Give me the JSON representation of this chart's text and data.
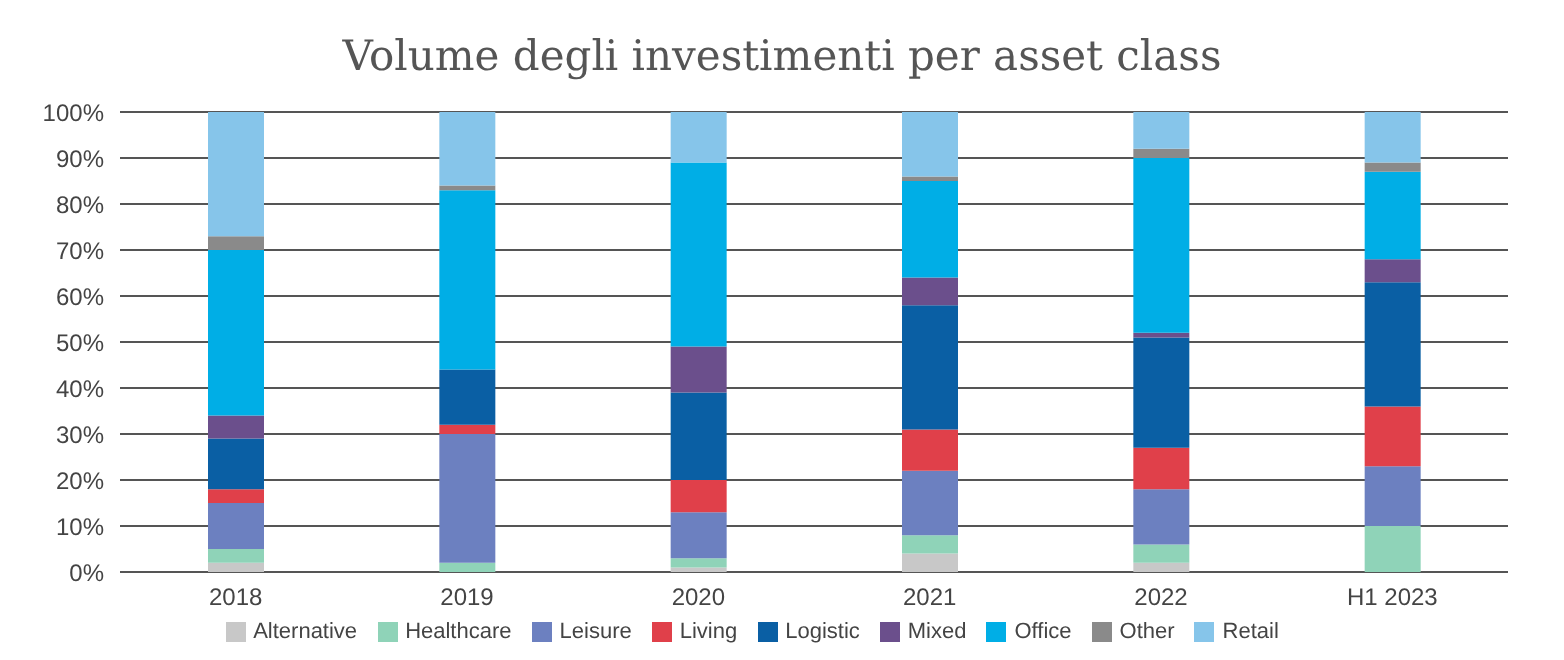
{
  "chart_data": {
    "type": "bar",
    "title": "Volume degli investimenti per asset class",
    "stacked": true,
    "categories": [
      "2018",
      "2019",
      "2020",
      "2021",
      "2022",
      "H1 2023"
    ],
    "series": [
      {
        "name": "Alternative",
        "color": "#c8c8c8",
        "values": [
          2,
          0,
          1,
          4,
          2,
          0
        ]
      },
      {
        "name": "Healthcare",
        "color": "#8fd3b8",
        "values": [
          3,
          2,
          2,
          4,
          4,
          10
        ]
      },
      {
        "name": "Leisure",
        "color": "#6c80c0",
        "values": [
          10,
          28,
          10,
          14,
          12,
          13
        ]
      },
      {
        "name": "Living",
        "color": "#e0404a",
        "values": [
          3,
          2,
          7,
          9,
          9,
          13
        ]
      },
      {
        "name": "Logistic",
        "color": "#0a5fa4",
        "values": [
          11,
          12,
          19,
          27,
          24,
          27
        ]
      },
      {
        "name": "Mixed",
        "color": "#6b4f8c",
        "values": [
          5,
          0,
          10,
          6,
          1,
          5
        ]
      },
      {
        "name": "Office",
        "color": "#00aee6",
        "values": [
          36,
          39,
          40,
          21,
          38,
          19
        ]
      },
      {
        "name": "Other",
        "color": "#8a8a8a",
        "values": [
          3,
          1,
          0,
          1,
          2,
          2
        ]
      },
      {
        "name": "Retail",
        "color": "#86c5ea",
        "values": [
          27,
          16,
          11,
          14,
          8,
          11
        ]
      }
    ],
    "ylim": [
      0,
      100
    ],
    "yticks": [
      {
        "value": 0,
        "label": "0%"
      },
      {
        "value": 10,
        "label": "10%"
      },
      {
        "value": 20,
        "label": "20%"
      },
      {
        "value": 30,
        "label": "30%"
      },
      {
        "value": 40,
        "label": "40%"
      },
      {
        "value": 50,
        "label": "50%"
      },
      {
        "value": 60,
        "label": "60%"
      },
      {
        "value": 70,
        "label": "70%"
      },
      {
        "value": 80,
        "label": "80%"
      },
      {
        "value": 90,
        "label": "90%"
      },
      {
        "value": 100,
        "label": "100%"
      }
    ],
    "grid": "y",
    "legend": "bottom"
  }
}
